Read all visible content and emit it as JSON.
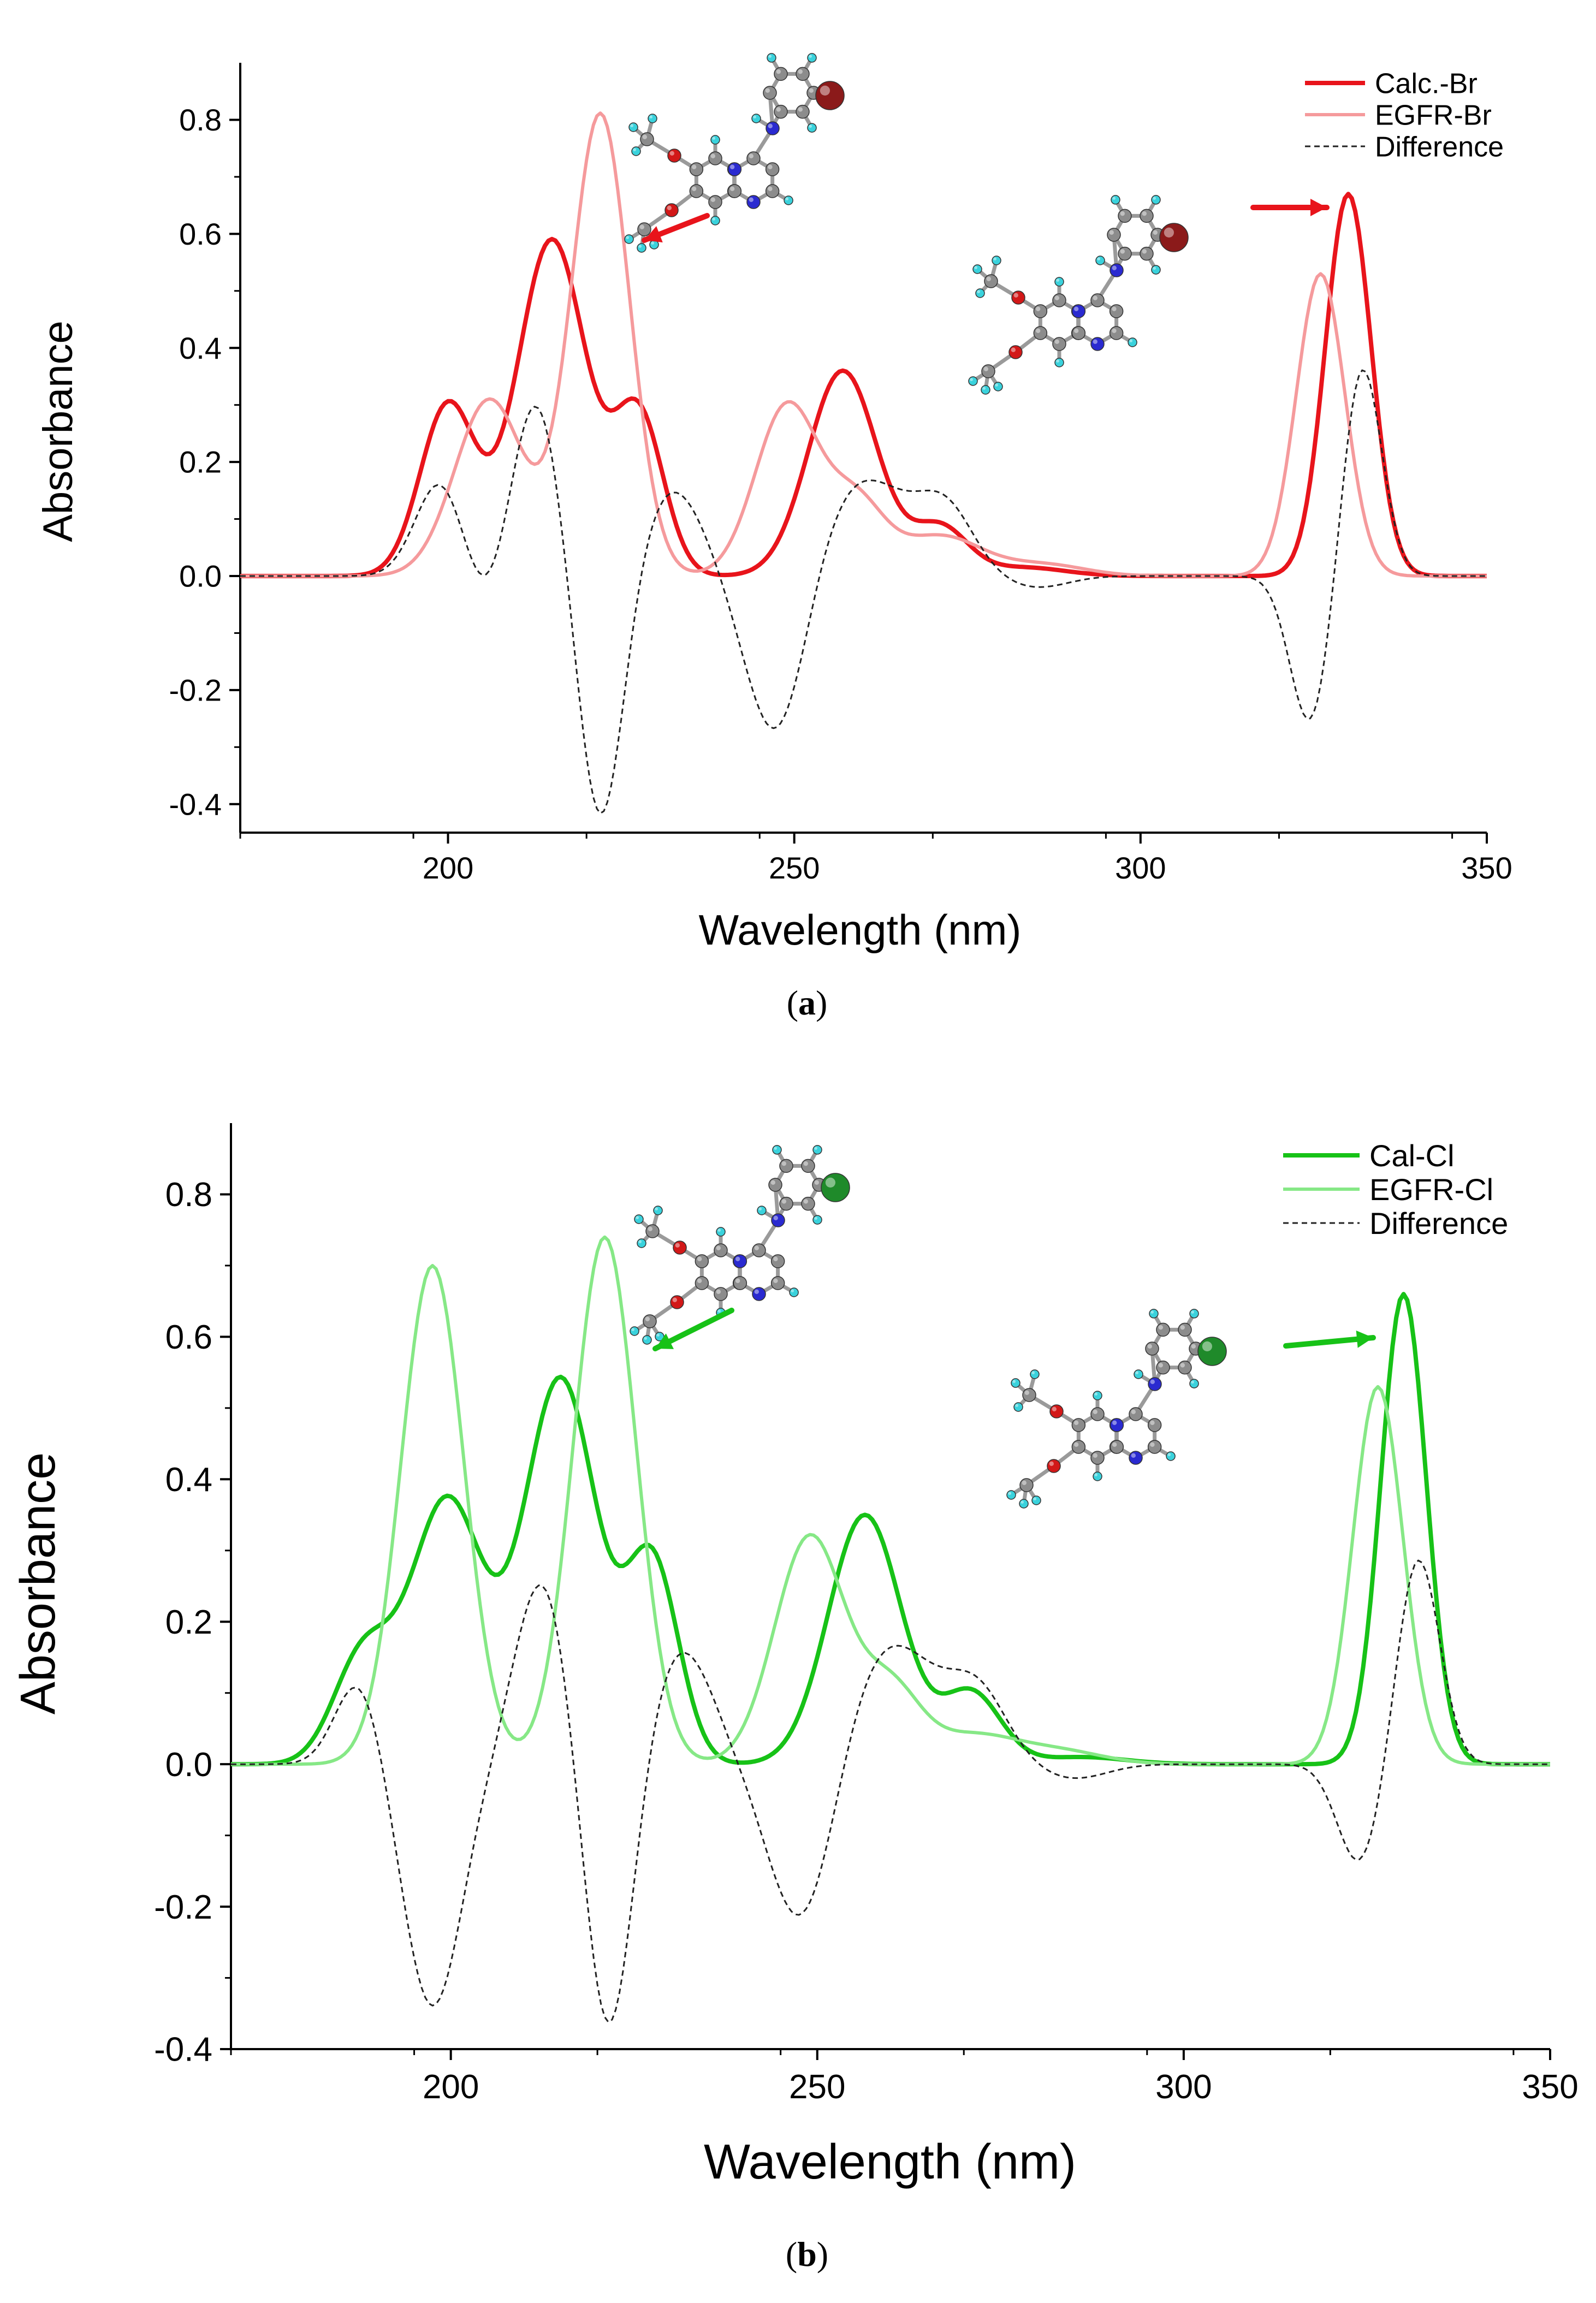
{
  "chart_data": [
    {
      "type": "line",
      "panel_label_open": "(",
      "panel_label_letter": "a",
      "panel_label_close": ")",
      "xlabel": "Wavelength (nm)",
      "ylabel": "Absorbance",
      "xlim": [
        170,
        350
      ],
      "ylim": [
        -0.45,
        0.9
      ],
      "x_ticks": [
        200,
        250,
        300,
        350
      ],
      "y_ticks": [
        -0.4,
        -0.2,
        0.0,
        0.2,
        0.4,
        0.6,
        0.8
      ],
      "y_tick_labels": [
        "-0.4",
        "-0.2",
        "0.0",
        "0.2",
        "0.4",
        "0.6",
        "0.8"
      ],
      "legend": [
        "Calc.-Br",
        "EGFR-Br",
        "Difference"
      ],
      "halogen_color": "#8b1a1a",
      "series": [
        {
          "name": "Calc.-Br",
          "color": "#e8141b",
          "width": 8,
          "dash": "",
          "peaks": [
            [
              200,
              0.3,
              4.0
            ],
            [
              215,
              0.59,
              5.0
            ],
            [
              227.5,
              0.28,
              3.6
            ],
            [
              257,
              0.36,
              5.0
            ],
            [
              271,
              0.085,
              4.0
            ],
            [
              283,
              0.015,
              6.0
            ],
            [
              330,
              0.67,
              3.3
            ]
          ]
        },
        {
          "name": "EGFR-Br",
          "color": "#f59a9c",
          "width": 6,
          "dash": "",
          "peaks": [
            [
              206,
              0.31,
              5.0
            ],
            [
              222,
              0.81,
              4.2
            ],
            [
              249,
              0.3,
              4.6
            ],
            [
              259,
              0.12,
              4.0
            ],
            [
              271,
              0.07,
              6.0
            ],
            [
              286,
              0.02,
              6.0
            ],
            [
              326,
              0.53,
              3.5
            ]
          ]
        },
        {
          "name": "Difference",
          "color": "#222222",
          "width": 3,
          "dash": "10,7",
          "peaks": [
            [
              199,
              0.17,
              3.6
            ],
            [
              212.5,
              0.32,
              3.8
            ],
            [
              232.5,
              0.15,
              4.5
            ],
            [
              260,
              0.17,
              7.0
            ],
            [
              272,
              0.1,
              4.0
            ],
            [
              332,
              0.37,
              2.8
            ],
            [
              206,
              -0.09,
              3.5
            ],
            [
              222,
              -0.44,
              3.3
            ],
            [
              247.5,
              -0.3,
              4.4
            ],
            [
              285,
              -0.02,
              4.5
            ],
            [
              324.5,
              -0.26,
              2.9
            ]
          ]
        }
      ]
    },
    {
      "type": "line",
      "panel_label_open": "(",
      "panel_label_letter": "b",
      "panel_label_close": ")",
      "xlabel": "Wavelength (nm)",
      "ylabel": "Absorbance",
      "xlim": [
        170,
        350
      ],
      "ylim": [
        -0.4,
        0.9
      ],
      "x_ticks": [
        200,
        250,
        300,
        350
      ],
      "y_ticks": [
        -0.4,
        -0.2,
        0.0,
        0.2,
        0.4,
        0.6,
        0.8
      ],
      "y_tick_labels": [
        "-0.4",
        "-0.2",
        "0.0",
        "0.2",
        "0.4",
        "0.6",
        "0.8"
      ],
      "legend": [
        "Cal-Cl",
        "EGFR-Cl",
        "Difference"
      ],
      "halogen_color": "#1f8a2a",
      "series": [
        {
          "name": "Cal-Cl",
          "color": "#17c217",
          "width": 8,
          "dash": "",
          "peaks": [
            [
              188,
              0.15,
              4.0
            ],
            [
              199.5,
              0.37,
              5.0
            ],
            [
              215,
              0.54,
              5.0
            ],
            [
              227.5,
              0.28,
              3.6
            ],
            [
              256.5,
              0.35,
              5.0
            ],
            [
              271,
              0.1,
              4.0
            ],
            [
              286,
              0.01,
              6.0
            ],
            [
              330,
              0.66,
              3.1
            ]
          ]
        },
        {
          "name": "EGFR-Cl",
          "color": "#86e886",
          "width": 6,
          "dash": "",
          "peaks": [
            [
              197.5,
              0.7,
              4.3
            ],
            [
              221,
              0.74,
              4.3
            ],
            [
              249,
              0.32,
              4.8
            ],
            [
              260,
              0.1,
              4.0
            ],
            [
              271,
              0.04,
              6.0
            ],
            [
              283,
              0.018,
              6.0
            ],
            [
              326.5,
              0.53,
              3.4
            ]
          ]
        },
        {
          "name": "Difference",
          "color": "#222222",
          "width": 3,
          "dash": "10,7",
          "peaks": [
            [
              187.5,
              0.12,
              3.2
            ],
            [
              212.5,
              0.26,
              3.8
            ],
            [
              231.5,
              0.16,
              4.4
            ],
            [
              260,
              0.17,
              6.5
            ],
            [
              272,
              0.09,
              4.0
            ],
            [
              332,
              0.29,
              2.9
            ],
            [
              197.5,
              -0.34,
              4.0
            ],
            [
              221.5,
              -0.39,
              3.3
            ],
            [
              248,
              -0.24,
              4.5
            ],
            [
              285,
              -0.02,
              4.5
            ],
            [
              324,
              -0.14,
              3.0
            ]
          ]
        }
      ]
    }
  ],
  "molecule": {
    "ring_a": [
      "C",
      "C",
      "C",
      "C",
      "C",
      "C"
    ],
    "ring_b": [
      "C",
      "N",
      "C",
      "N",
      "C",
      "C"
    ],
    "ring_c": [
      "C",
      "C",
      "C",
      "C",
      "C",
      "C"
    ],
    "link_n": "N",
    "ome_o1": "O",
    "ome_o2": "O",
    "colors": {
      "C": "#8c8c8c",
      "N": "#2a2ad0",
      "O": "#d21818",
      "H": "#3ad2dc",
      "bond": "#9a9a9a"
    }
  }
}
